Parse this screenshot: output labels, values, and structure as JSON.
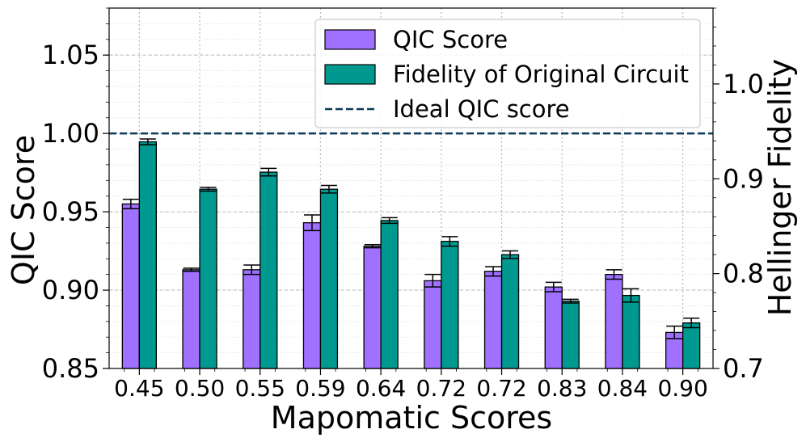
{
  "chart_data": {
    "type": "bar",
    "xlabel": "Mapomatic Scores",
    "ylabel": "QIC Score",
    "ylabel_right": "Hellinger Fidelity",
    "categories": [
      "0.45",
      "0.50",
      "0.55",
      "0.59",
      "0.64",
      "0.72",
      "0.72",
      "0.83",
      "0.84",
      "0.90"
    ],
    "ylim": [
      0.85,
      1.08
    ],
    "ylim_right": [
      0.7,
      1.08
    ],
    "yticks": [
      "0.85",
      "0.90",
      "0.95",
      "1.00",
      "1.05"
    ],
    "yticks_right": [
      "0.7",
      "0.8",
      "0.9",
      "1.0"
    ],
    "grid": true,
    "legend_position": "top-right",
    "series": [
      {
        "name": "QIC Score",
        "axis": "left",
        "color": "#a070ff",
        "values": [
          0.955,
          0.913,
          0.913,
          0.943,
          0.928,
          0.906,
          0.912,
          0.902,
          0.91,
          0.873
        ],
        "errors": [
          0.003,
          0.001,
          0.003,
          0.005,
          0.001,
          0.004,
          0.003,
          0.003,
          0.003,
          0.004
        ]
      },
      {
        "name": "Fidelity of Original Circuit",
        "axis": "right",
        "color": "#00998f",
        "values": [
          0.939,
          0.889,
          0.907,
          0.889,
          0.856,
          0.834,
          0.82,
          0.771,
          0.777,
          0.748
        ],
        "errors": [
          0.003,
          0.002,
          0.004,
          0.004,
          0.003,
          0.005,
          0.004,
          0.002,
          0.007,
          0.005
        ]
      }
    ],
    "reference_line": {
      "name": "Ideal QIC score",
      "value": 1.0,
      "axis": "left",
      "style": "dashed",
      "color": "#0b3a57"
    }
  }
}
